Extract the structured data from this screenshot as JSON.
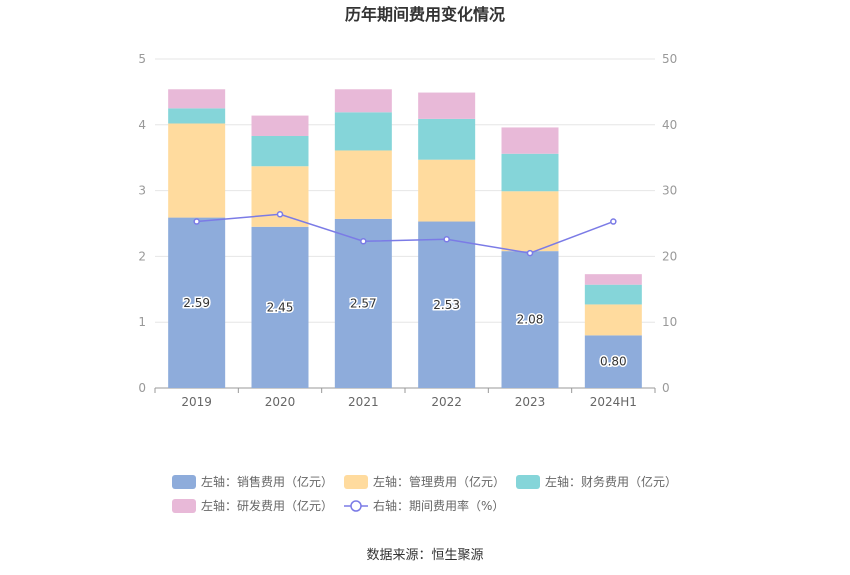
{
  "chart_data": {
    "type": "bar",
    "title": "历年期间费用变化情况",
    "categories": [
      "2019",
      "2020",
      "2021",
      "2022",
      "2023",
      "2024H1"
    ],
    "left_axis": {
      "min": 0,
      "max": 5,
      "ticks": [
        "0",
        "1",
        "2",
        "3",
        "4",
        "5"
      ]
    },
    "right_axis": {
      "min": 0,
      "max": 50,
      "ticks": [
        "0",
        "10",
        "20",
        "30",
        "40",
        "50"
      ]
    },
    "series": [
      {
        "name": "左轴：销售费用（亿元）",
        "type": "bar",
        "axis": "left",
        "color": "#8eacdb",
        "values": [
          2.59,
          2.45,
          2.57,
          2.53,
          2.08,
          0.8
        ],
        "labels": [
          "2.59",
          "2.45",
          "2.57",
          "2.53",
          "2.08",
          "0.80"
        ]
      },
      {
        "name": "左轴：管理费用（亿元）",
        "type": "bar",
        "axis": "left",
        "color": "#ffdb9e",
        "values": [
          1.43,
          0.92,
          1.04,
          0.94,
          0.91,
          0.47
        ]
      },
      {
        "name": "左轴：财务费用（亿元）",
        "type": "bar",
        "axis": "left",
        "color": "#85d5d9",
        "values": [
          0.23,
          0.46,
          0.58,
          0.62,
          0.57,
          0.3
        ]
      },
      {
        "name": "左轴：研发费用（亿元）",
        "type": "bar",
        "axis": "left",
        "color": "#e8b9d8",
        "values": [
          0.29,
          0.31,
          0.35,
          0.4,
          0.4,
          0.16
        ]
      },
      {
        "name": "右轴：期间费用率（%）",
        "type": "line",
        "axis": "right",
        "color": "#7b7be6",
        "values": [
          25.3,
          26.4,
          22.3,
          22.6,
          20.5,
          25.3
        ]
      }
    ],
    "legend_position": "bottom",
    "grid": true
  },
  "source": "数据来源：恒生聚源"
}
